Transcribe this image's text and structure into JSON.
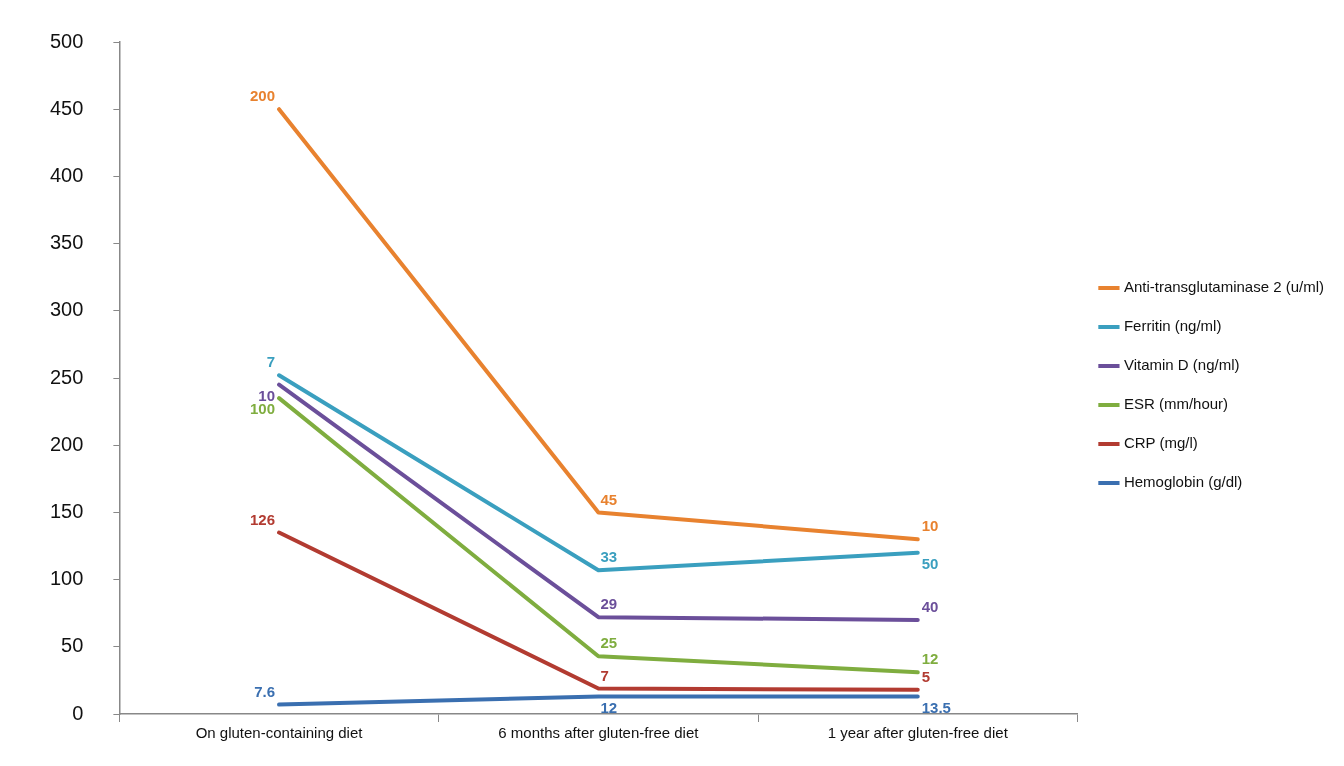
{
  "chart_data": {
    "type": "line",
    "categories": [
      "On gluten-containing diet",
      "6 months after gluten-free diet",
      "1 year after gluten-free diet"
    ],
    "ylim": [
      0,
      500
    ],
    "yticks": [
      0,
      50,
      100,
      150,
      200,
      250,
      300,
      350,
      400,
      450,
      500
    ],
    "grid": false,
    "legend": "right",
    "marker": "none",
    "line_style": "solid",
    "series": [
      {
        "name": "Anti-transglutaminase 2 (u/ml)",
        "color": "#e8822f",
        "values": [
          450,
          150,
          130
        ]
      },
      {
        "name": "Ferritin (ng/ml)",
        "color": "#3a9fbf",
        "values": [
          252,
          107,
          120
        ]
      },
      {
        "name": "Vitamin D (ng/ml)",
        "color": "#6b4f9a",
        "values": [
          245,
          72,
          70
        ]
      },
      {
        "name": "ESR (mm/hour)",
        "color": "#7fad3f",
        "values": [
          235,
          43,
          31
        ]
      },
      {
        "name": "CRP (mg/l)",
        "color": "#b23b31",
        "values": [
          135,
          19,
          18
        ]
      },
      {
        "name": "Hemoglobin (g/dl)",
        "color": "#3a6fb0",
        "values": [
          7,
          13,
          13
        ]
      }
    ],
    "annotations": [
      {
        "text": "200",
        "x": "On gluten-containing diet",
        "y": 450
      },
      {
        "text": "45",
        "x": "6 months after gluten-free diet",
        "y": 150
      },
      {
        "text": "10",
        "x": "1 year after gluten-free diet",
        "y": 130
      },
      {
        "text": "7",
        "x": "On gluten-containing diet",
        "y": 252
      },
      {
        "text": "33",
        "x": "6 months after gluten-free diet",
        "y": 107
      },
      {
        "text": "50",
        "x": "1 year after gluten-free diet",
        "y": 120
      },
      {
        "text": "10",
        "x": "On gluten-containing diet",
        "y": 245
      },
      {
        "text": "29",
        "x": "6 months after gluten-free diet",
        "y": 72
      },
      {
        "text": "40",
        "x": "1 year after gluten-free diet",
        "y": 70
      },
      {
        "text": "100",
        "x": "On gluten-containing diet",
        "y": 235
      },
      {
        "text": "25",
        "x": "6 months after gluten-free diet",
        "y": 43
      },
      {
        "text": "12",
        "x": "1 year after gluten-free diet",
        "y": 31
      },
      {
        "text": "126",
        "x": "On gluten-containing diet",
        "y": 135
      },
      {
        "text": "7",
        "x": "6 months after gluten-free diet",
        "y": 19
      },
      {
        "text": "5",
        "x": "1 year after gluten-free diet",
        "y": 18
      },
      {
        "text": "7.6",
        "x": "On gluten-containing diet",
        "y": 7
      },
      {
        "text": "12",
        "x": "6 months after gluten-free diet",
        "y": 13
      },
      {
        "text": "13.5",
        "x": "1 year after gluten-free diet",
        "y": 13
      }
    ]
  }
}
